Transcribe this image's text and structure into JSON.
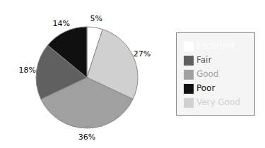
{
  "chart_data": {
    "type": "pie",
    "categories": [
      "Excellent",
      "Very Good",
      "Good",
      "Fair",
      "Poor"
    ],
    "values": [
      5,
      27,
      36,
      18,
      14
    ],
    "value_labels": [
      "5%",
      "27%",
      "36%",
      "18%",
      "14%"
    ],
    "colors": [
      "#ffffff",
      "#d0d0d0",
      "#a0a0a0",
      "#606060",
      "#101010"
    ],
    "data_labels": true,
    "legend": "right"
  }
}
